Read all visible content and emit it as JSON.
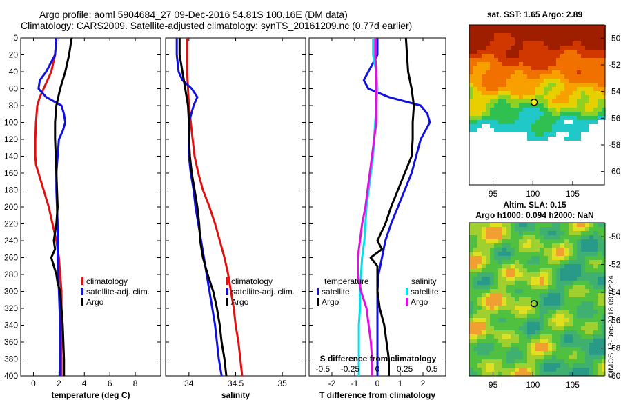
{
  "title_line1": "Argo profile: aoml 5904684_27 09-Dec-2016 54.81S 100.16E (DM data)",
  "title_line2": "Climatology: CARS2009. Satellite-adjusted climatology: synTS_20161209.nc (0.77d earlier)",
  "sst_title": "sat. SST: 1.65 Argo: 2.89",
  "sla_title1": "Altim. SLA: 0.15",
  "sla_title2": "Argo h1000: 0.094 h2000: NaN",
  "watermark": "©IMOS 13-Dec-2018 09:02:24",
  "colors": {
    "climatology": "#e01010",
    "satellite": "#1010e0",
    "argo": "#000000",
    "salinity_satellite": "#00e0ea",
    "salinity_climatology": "#e010e0"
  },
  "chart_data": [
    {
      "type": "line",
      "id": "temperature",
      "xlabel": "temperature (deg C)",
      "ylabel": "",
      "xlim": [
        -1,
        10
      ],
      "ylim": [
        400,
        0
      ],
      "xticks": [
        0,
        2,
        4,
        6,
        8
      ],
      "xtick_labels": [
        "0",
        "2",
        "4",
        "6",
        "8"
      ],
      "yticks": [
        0,
        20,
        40,
        60,
        80,
        100,
        120,
        140,
        160,
        180,
        200,
        220,
        240,
        260,
        280,
        300,
        320,
        340,
        360,
        380,
        400
      ],
      "legend": [
        "climatology",
        "satellite-adj. clim.",
        "Argo"
      ],
      "legend_position": "lower-right",
      "series": [
        {
          "name": "climatology",
          "color_key": "climatology",
          "depth": [
            0,
            20,
            40,
            50,
            60,
            70,
            80,
            100,
            120,
            140,
            150,
            160,
            180,
            200,
            220,
            240,
            260,
            280,
            300,
            320,
            340,
            360,
            380,
            400
          ],
          "values": [
            1.8,
            1.7,
            1.4,
            1.1,
            0.8,
            0.5,
            0.3,
            0.2,
            0.15,
            0.15,
            0.2,
            0.4,
            0.8,
            1.2,
            1.5,
            1.8,
            2.0,
            2.1,
            2.2,
            2.2,
            2.2,
            2.2,
            2.2,
            2.2
          ]
        },
        {
          "name": "satellite-adj. clim.",
          "color_key": "satellite",
          "depth": [
            0,
            20,
            40,
            50,
            60,
            70,
            80,
            90,
            100,
            110,
            120,
            140,
            160,
            180,
            200,
            220,
            240,
            260,
            280,
            300,
            320,
            340,
            360,
            380,
            400
          ],
          "values": [
            1.8,
            1.7,
            1.0,
            0.5,
            0.4,
            1.0,
            2.2,
            2.4,
            2.5,
            2.3,
            2.0,
            1.9,
            1.8,
            1.8,
            1.85,
            1.9,
            1.9,
            1.9,
            1.95,
            2.0,
            2.05,
            2.1,
            2.1,
            2.1,
            2.1
          ]
        },
        {
          "name": "Argo",
          "color_key": "argo",
          "depth": [
            0,
            20,
            40,
            60,
            80,
            100,
            120,
            140,
            160,
            180,
            200,
            220,
            240,
            250,
            260,
            270,
            280,
            290,
            300,
            320,
            340,
            360,
            380,
            400
          ],
          "values": [
            3.0,
            2.8,
            2.5,
            2.1,
            1.8,
            1.7,
            1.7,
            1.75,
            1.8,
            1.85,
            1.9,
            1.8,
            1.6,
            1.7,
            1.4,
            1.6,
            1.8,
            1.9,
            2.1,
            2.2,
            2.3,
            2.35,
            2.4,
            2.4
          ]
        }
      ]
    },
    {
      "type": "line",
      "id": "salinity",
      "xlabel": "salinity",
      "ylabel": "",
      "xlim": [
        33.75,
        35.25
      ],
      "ylim": [
        400,
        0
      ],
      "xticks": [
        34,
        34.5,
        35
      ],
      "xtick_labels": [
        "34",
        "34.5",
        "35"
      ],
      "legend": [
        "climatology",
        "satellite-adj. clim.",
        "Argo"
      ],
      "legend_position": "lower-right",
      "series": [
        {
          "name": "climatology",
          "color_key": "climatology",
          "depth": [
            0,
            20,
            40,
            60,
            80,
            100,
            120,
            140,
            160,
            180,
            200,
            220,
            240,
            260,
            280,
            300,
            320,
            340,
            360,
            380,
            400
          ],
          "values": [
            33.98,
            33.98,
            33.98,
            33.99,
            34.0,
            34.02,
            34.04,
            34.06,
            34.1,
            34.15,
            34.22,
            34.28,
            34.33,
            34.38,
            34.42,
            34.45,
            34.48,
            34.5,
            34.53,
            34.55,
            34.57
          ]
        },
        {
          "name": "satellite-adj. clim.",
          "color_key": "satellite",
          "depth": [
            0,
            20,
            40,
            50,
            60,
            70,
            80,
            100,
            120,
            140,
            160,
            180,
            200,
            220,
            240,
            260,
            280,
            300,
            320,
            340,
            360,
            380,
            400
          ],
          "values": [
            33.87,
            33.87,
            33.89,
            33.93,
            34.03,
            34.09,
            34.05,
            34.0,
            34.0,
            34.0,
            34.02,
            34.05,
            34.07,
            34.1,
            34.13,
            34.16,
            34.19,
            34.22,
            34.25,
            34.28,
            34.3,
            34.32,
            34.35
          ]
        },
        {
          "name": "Argo",
          "color_key": "argo",
          "depth": [
            0,
            20,
            40,
            60,
            80,
            100,
            120,
            140,
            160,
            180,
            200,
            220,
            240,
            260,
            280,
            300,
            320,
            340,
            360,
            380,
            400
          ],
          "values": [
            33.9,
            33.9,
            33.93,
            33.96,
            33.99,
            34.0,
            34.0,
            34.01,
            34.03,
            34.06,
            34.09,
            34.11,
            34.12,
            34.15,
            34.2,
            34.26,
            34.3,
            34.33,
            34.35,
            34.38,
            34.4
          ]
        }
      ]
    },
    {
      "type": "line",
      "id": "difference",
      "xlabel": "T difference from climatology",
      "top_xlabel": "S difference from climatology",
      "xlim": [
        -3,
        3
      ],
      "ylim": [
        400,
        0
      ],
      "xticks": [
        -2,
        -1,
        0,
        1,
        2
      ],
      "xtick_labels": [
        "-2",
        "-1",
        "0",
        "1",
        "2"
      ],
      "top_xticks": [
        -0.5,
        -0.25,
        0,
        0.25,
        0.5
      ],
      "top_xtick_labels": [
        "-0.5",
        "-0.25",
        "0",
        "0.25",
        "0.5"
      ],
      "legend_temperature_title": "temperature",
      "legend_salinity_title": "salinity",
      "legend_temperature": [
        "satellite",
        "Argo"
      ],
      "legend_salinity": [
        "satellite",
        "Argo"
      ],
      "series": [
        {
          "name": "temperature satellite",
          "color_key": "satellite",
          "depth": [
            0,
            20,
            40,
            50,
            60,
            70,
            80,
            90,
            100,
            110,
            120,
            140,
            160,
            180,
            200,
            220,
            240,
            260,
            280,
            300,
            320,
            340,
            360,
            380,
            400
          ],
          "values": [
            0,
            0,
            -0.4,
            -0.6,
            -0.4,
            0.5,
            1.9,
            2.2,
            2.3,
            2.1,
            1.9,
            1.7,
            1.5,
            1.2,
            0.9,
            0.6,
            0.35,
            0.2,
            0.05,
            0,
            0,
            0,
            0,
            0,
            0
          ]
        },
        {
          "name": "temperature Argo",
          "color_key": "argo",
          "depth": [
            0,
            20,
            40,
            60,
            80,
            100,
            120,
            140,
            160,
            180,
            200,
            220,
            240,
            250,
            260,
            270,
            280,
            290,
            300,
            320,
            340,
            360,
            380,
            400
          ],
          "values": [
            1.25,
            1.3,
            1.35,
            1.5,
            1.6,
            1.55,
            1.55,
            1.5,
            1.2,
            0.9,
            0.6,
            0.35,
            0.0,
            0.2,
            -0.3,
            0.0,
            0.0,
            0.0,
            0.0,
            0.1,
            0.3,
            0.4,
            0.5,
            0.5
          ]
        },
        {
          "name": "salinity satellite",
          "color_key": "salinity_satellite",
          "depth": [
            0,
            20,
            40,
            60,
            80,
            100,
            120,
            140,
            160,
            180,
            200,
            220,
            240,
            260,
            280,
            300,
            320,
            340,
            360,
            380,
            400
          ],
          "values": [
            -0.04,
            -0.04,
            -0.01,
            0.0,
            -0.01,
            -0.02,
            -0.03,
            -0.04,
            -0.06,
            -0.08,
            -0.1,
            -0.11,
            -0.12,
            -0.14,
            -0.15,
            -0.16,
            -0.16,
            -0.17,
            -0.17,
            -0.17,
            -0.17
          ]
        },
        {
          "name": "salinity Argo",
          "color_key": "salinity_climatology",
          "depth": [
            0,
            20,
            40,
            60,
            80,
            100,
            120,
            140,
            160,
            180,
            200,
            220,
            240,
            260,
            280,
            300,
            320,
            340,
            360,
            380,
            400
          ],
          "values": [
            -0.02,
            -0.02,
            -0.01,
            -0.01,
            -0.01,
            -0.01,
            -0.03,
            -0.05,
            -0.07,
            -0.09,
            -0.11,
            -0.14,
            -0.16,
            -0.18,
            -0.18,
            -0.15,
            -0.1,
            -0.08,
            -0.06,
            -0.05,
            -0.05
          ]
        }
      ]
    },
    {
      "type": "heatmap",
      "id": "sst_map",
      "title": "sat. SST: 1.65 Argo: 2.89",
      "xlim": [
        92,
        109
      ],
      "ylim": [
        -61,
        -49
      ],
      "xticks": [
        95,
        100,
        105
      ],
      "xtick_labels": [
        "95",
        "100",
        "105"
      ],
      "yticks": [
        -50,
        -52,
        -54,
        -56,
        -58,
        -60
      ],
      "ytick_labels": [
        "-50",
        "-52",
        "-54",
        "-56",
        "-58",
        "-60"
      ],
      "marker": {
        "lon": 100.16,
        "lat": -54.81
      }
    },
    {
      "type": "heatmap",
      "id": "sla_map",
      "title": "Altim. SLA: 0.15 / Argo h1000: 0.094 h2000: NaN",
      "xlim": [
        92,
        109
      ],
      "ylim": [
        -60,
        -49
      ],
      "xticks": [
        95,
        100,
        105
      ],
      "xtick_labels": [
        "95",
        "100",
        "105"
      ],
      "yticks": [
        -50,
        -52,
        -54,
        -56,
        -58,
        -60
      ],
      "ytick_labels": [
        "-50",
        "-52",
        "-54",
        "-56",
        "-58",
        "-60"
      ],
      "marker": {
        "lon": 100.16,
        "lat": -54.81
      }
    }
  ]
}
